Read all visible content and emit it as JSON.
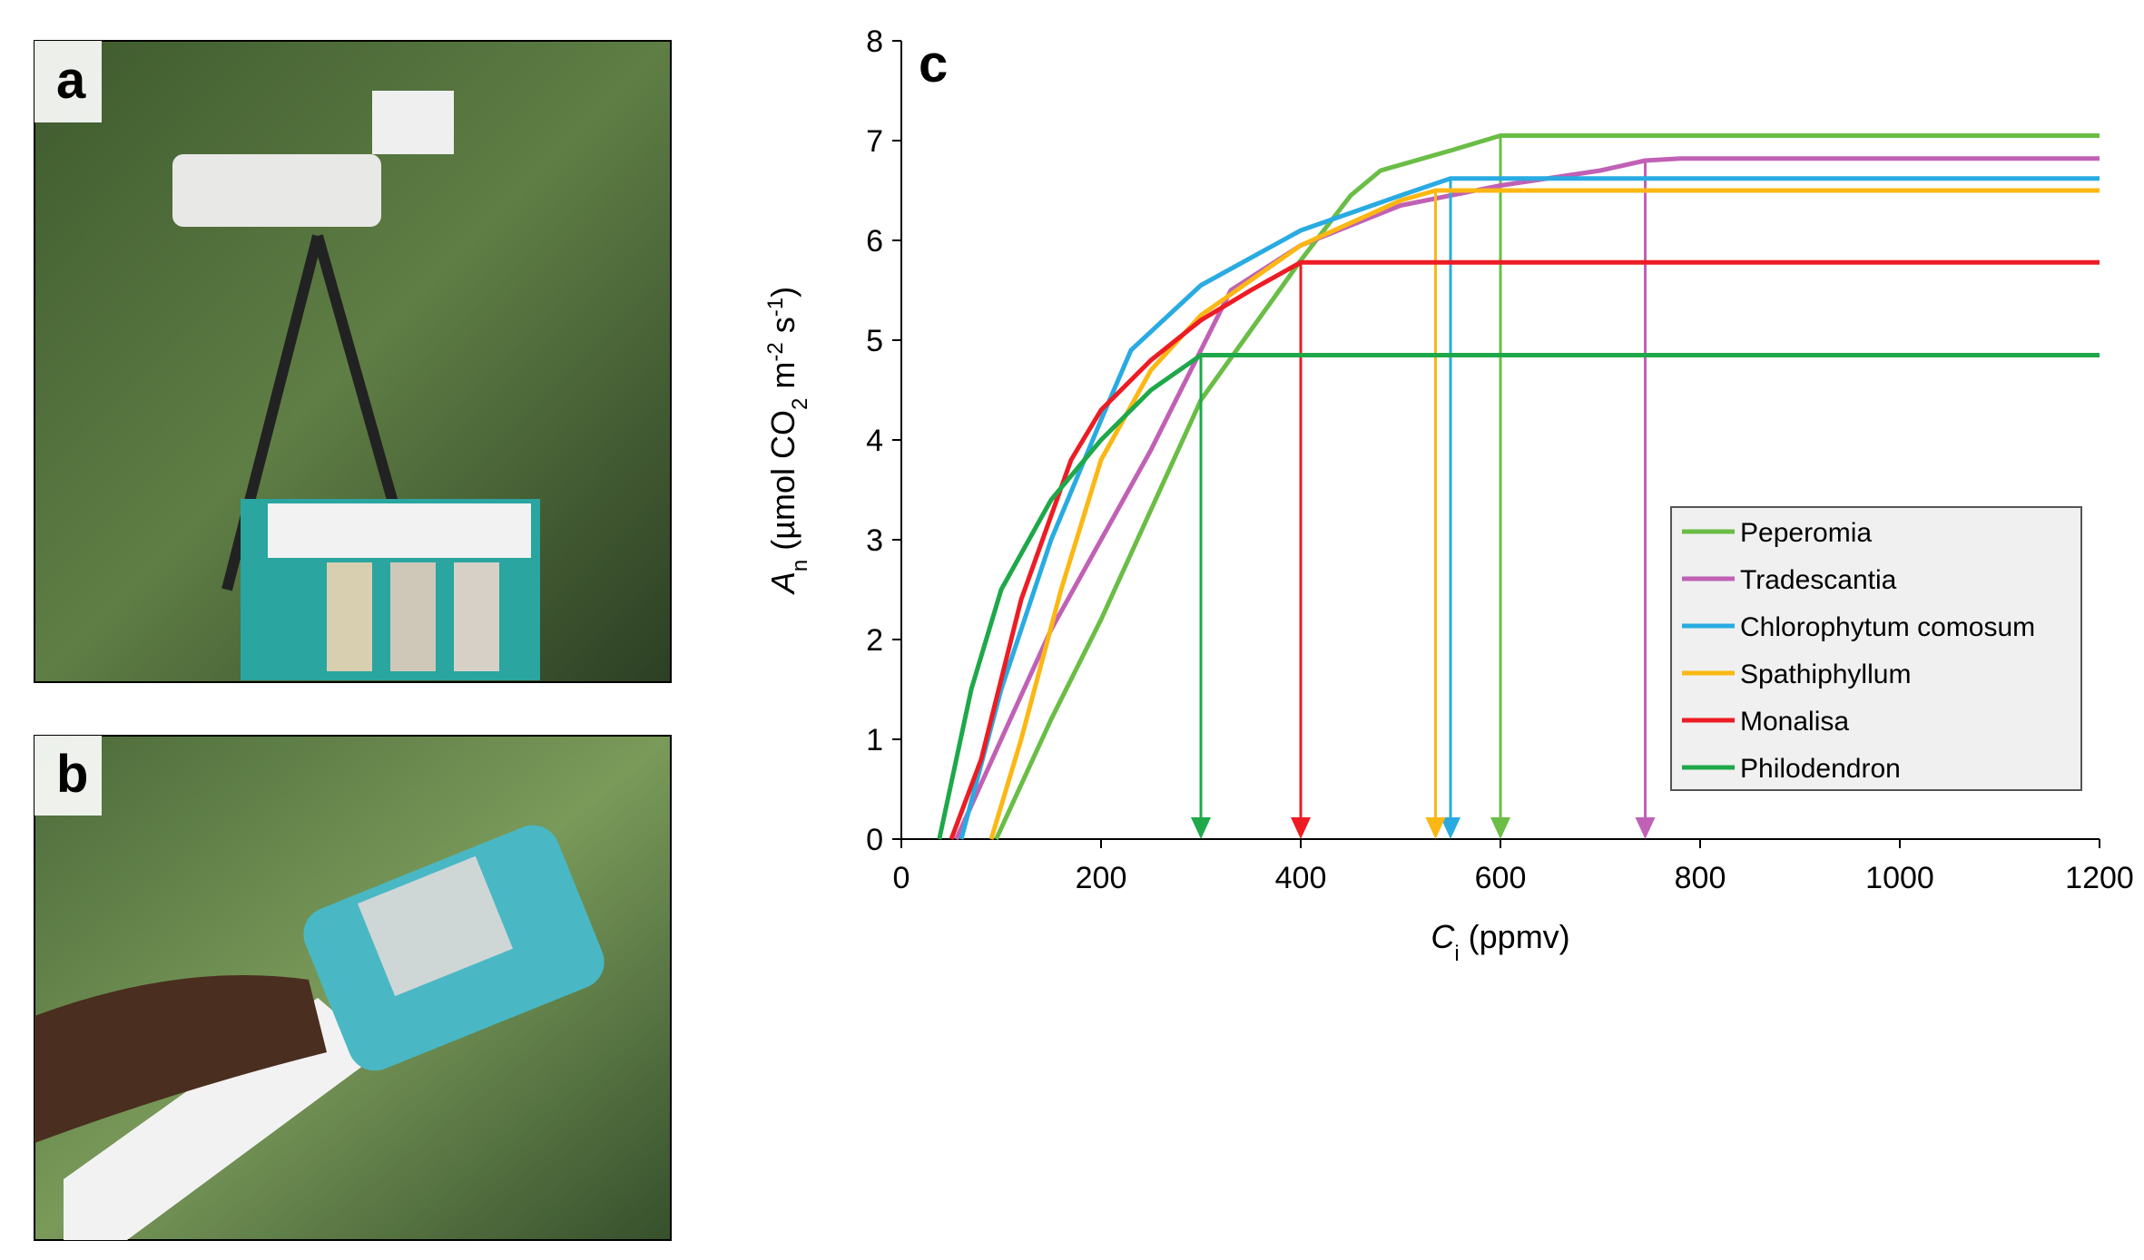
{
  "panel_labels": [
    "a",
    "b"
  ],
  "chart_data": {
    "type": "line",
    "title": "c",
    "xlabel_parts": [
      {
        "text": "C",
        "style": "italic"
      },
      {
        "text": "i",
        "style": "sub"
      },
      {
        "text": " (ppmv)",
        "style": "normal"
      }
    ],
    "ylabel_parts": [
      {
        "text": "A",
        "style": "italic"
      },
      {
        "text": "n",
        "style": "sub"
      },
      {
        "text": " (µmol CO",
        "style": "normal"
      },
      {
        "text": "2",
        "style": "sub"
      },
      {
        "text": " m",
        "style": "normal"
      },
      {
        "text": "-2",
        "style": "sup"
      },
      {
        "text": " s",
        "style": "normal"
      },
      {
        "text": "-1",
        "style": "sup"
      },
      {
        "text": ")",
        "style": "normal"
      }
    ],
    "xlim": [
      0,
      1200
    ],
    "xticks": [
      0,
      200,
      400,
      600,
      800,
      1000,
      1200
    ],
    "ylim": [
      0,
      8
    ],
    "yticks": [
      0,
      1,
      2,
      3,
      4,
      5,
      6,
      7,
      8
    ],
    "legend_position": "right",
    "series": [
      {
        "name": "Peperomia",
        "color": "#6abd45",
        "saturation": 600,
        "x": [
          95,
          150,
          200,
          250,
          300,
          350,
          400,
          450,
          480,
          550,
          600,
          1200
        ],
        "values": [
          0,
          1.2,
          2.2,
          3.3,
          4.4,
          5.1,
          5.8,
          6.45,
          6.7,
          6.9,
          7.05,
          7.05
        ]
      },
      {
        "name": "Tradescantia",
        "color": "#c061b5",
        "saturation": 745,
        "x": [
          55,
          100,
          150,
          200,
          250,
          300,
          330,
          400,
          500,
          600,
          700,
          745,
          780,
          1200
        ],
        "values": [
          0,
          1,
          2.1,
          3,
          3.9,
          4.9,
          5.5,
          5.95,
          6.35,
          6.55,
          6.7,
          6.8,
          6.82,
          6.82
        ]
      },
      {
        "name": "Chlorophytum comosum",
        "color": "#29abe2",
        "saturation": 550,
        "x": [
          60,
          100,
          150,
          200,
          230,
          300,
          400,
          500,
          550,
          1200
        ],
        "values": [
          0,
          1.5,
          3,
          4.2,
          4.9,
          5.55,
          6.1,
          6.45,
          6.62,
          6.62
        ]
      },
      {
        "name": "Spathiphyllum",
        "color": "#fbb713",
        "saturation": 535,
        "x": [
          90,
          120,
          160,
          200,
          250,
          300,
          400,
          500,
          535,
          1200
        ],
        "values": [
          0,
          1,
          2.5,
          3.8,
          4.7,
          5.25,
          5.95,
          6.4,
          6.5,
          6.5
        ]
      },
      {
        "name": "Monalisa",
        "color": "#ed1c24",
        "saturation": 400,
        "x": [
          50,
          80,
          120,
          170,
          200,
          250,
          300,
          350,
          400,
          1200
        ],
        "values": [
          0,
          0.8,
          2.4,
          3.8,
          4.3,
          4.8,
          5.2,
          5.5,
          5.78,
          5.78
        ]
      },
      {
        "name": "Philodendron",
        "color": "#1ea84a",
        "saturation": 300,
        "x": [
          38,
          70,
          100,
          150,
          200,
          250,
          300,
          1200
        ],
        "values": [
          0,
          1.5,
          2.5,
          3.4,
          4,
          4.5,
          4.85,
          4.85
        ]
      }
    ]
  }
}
